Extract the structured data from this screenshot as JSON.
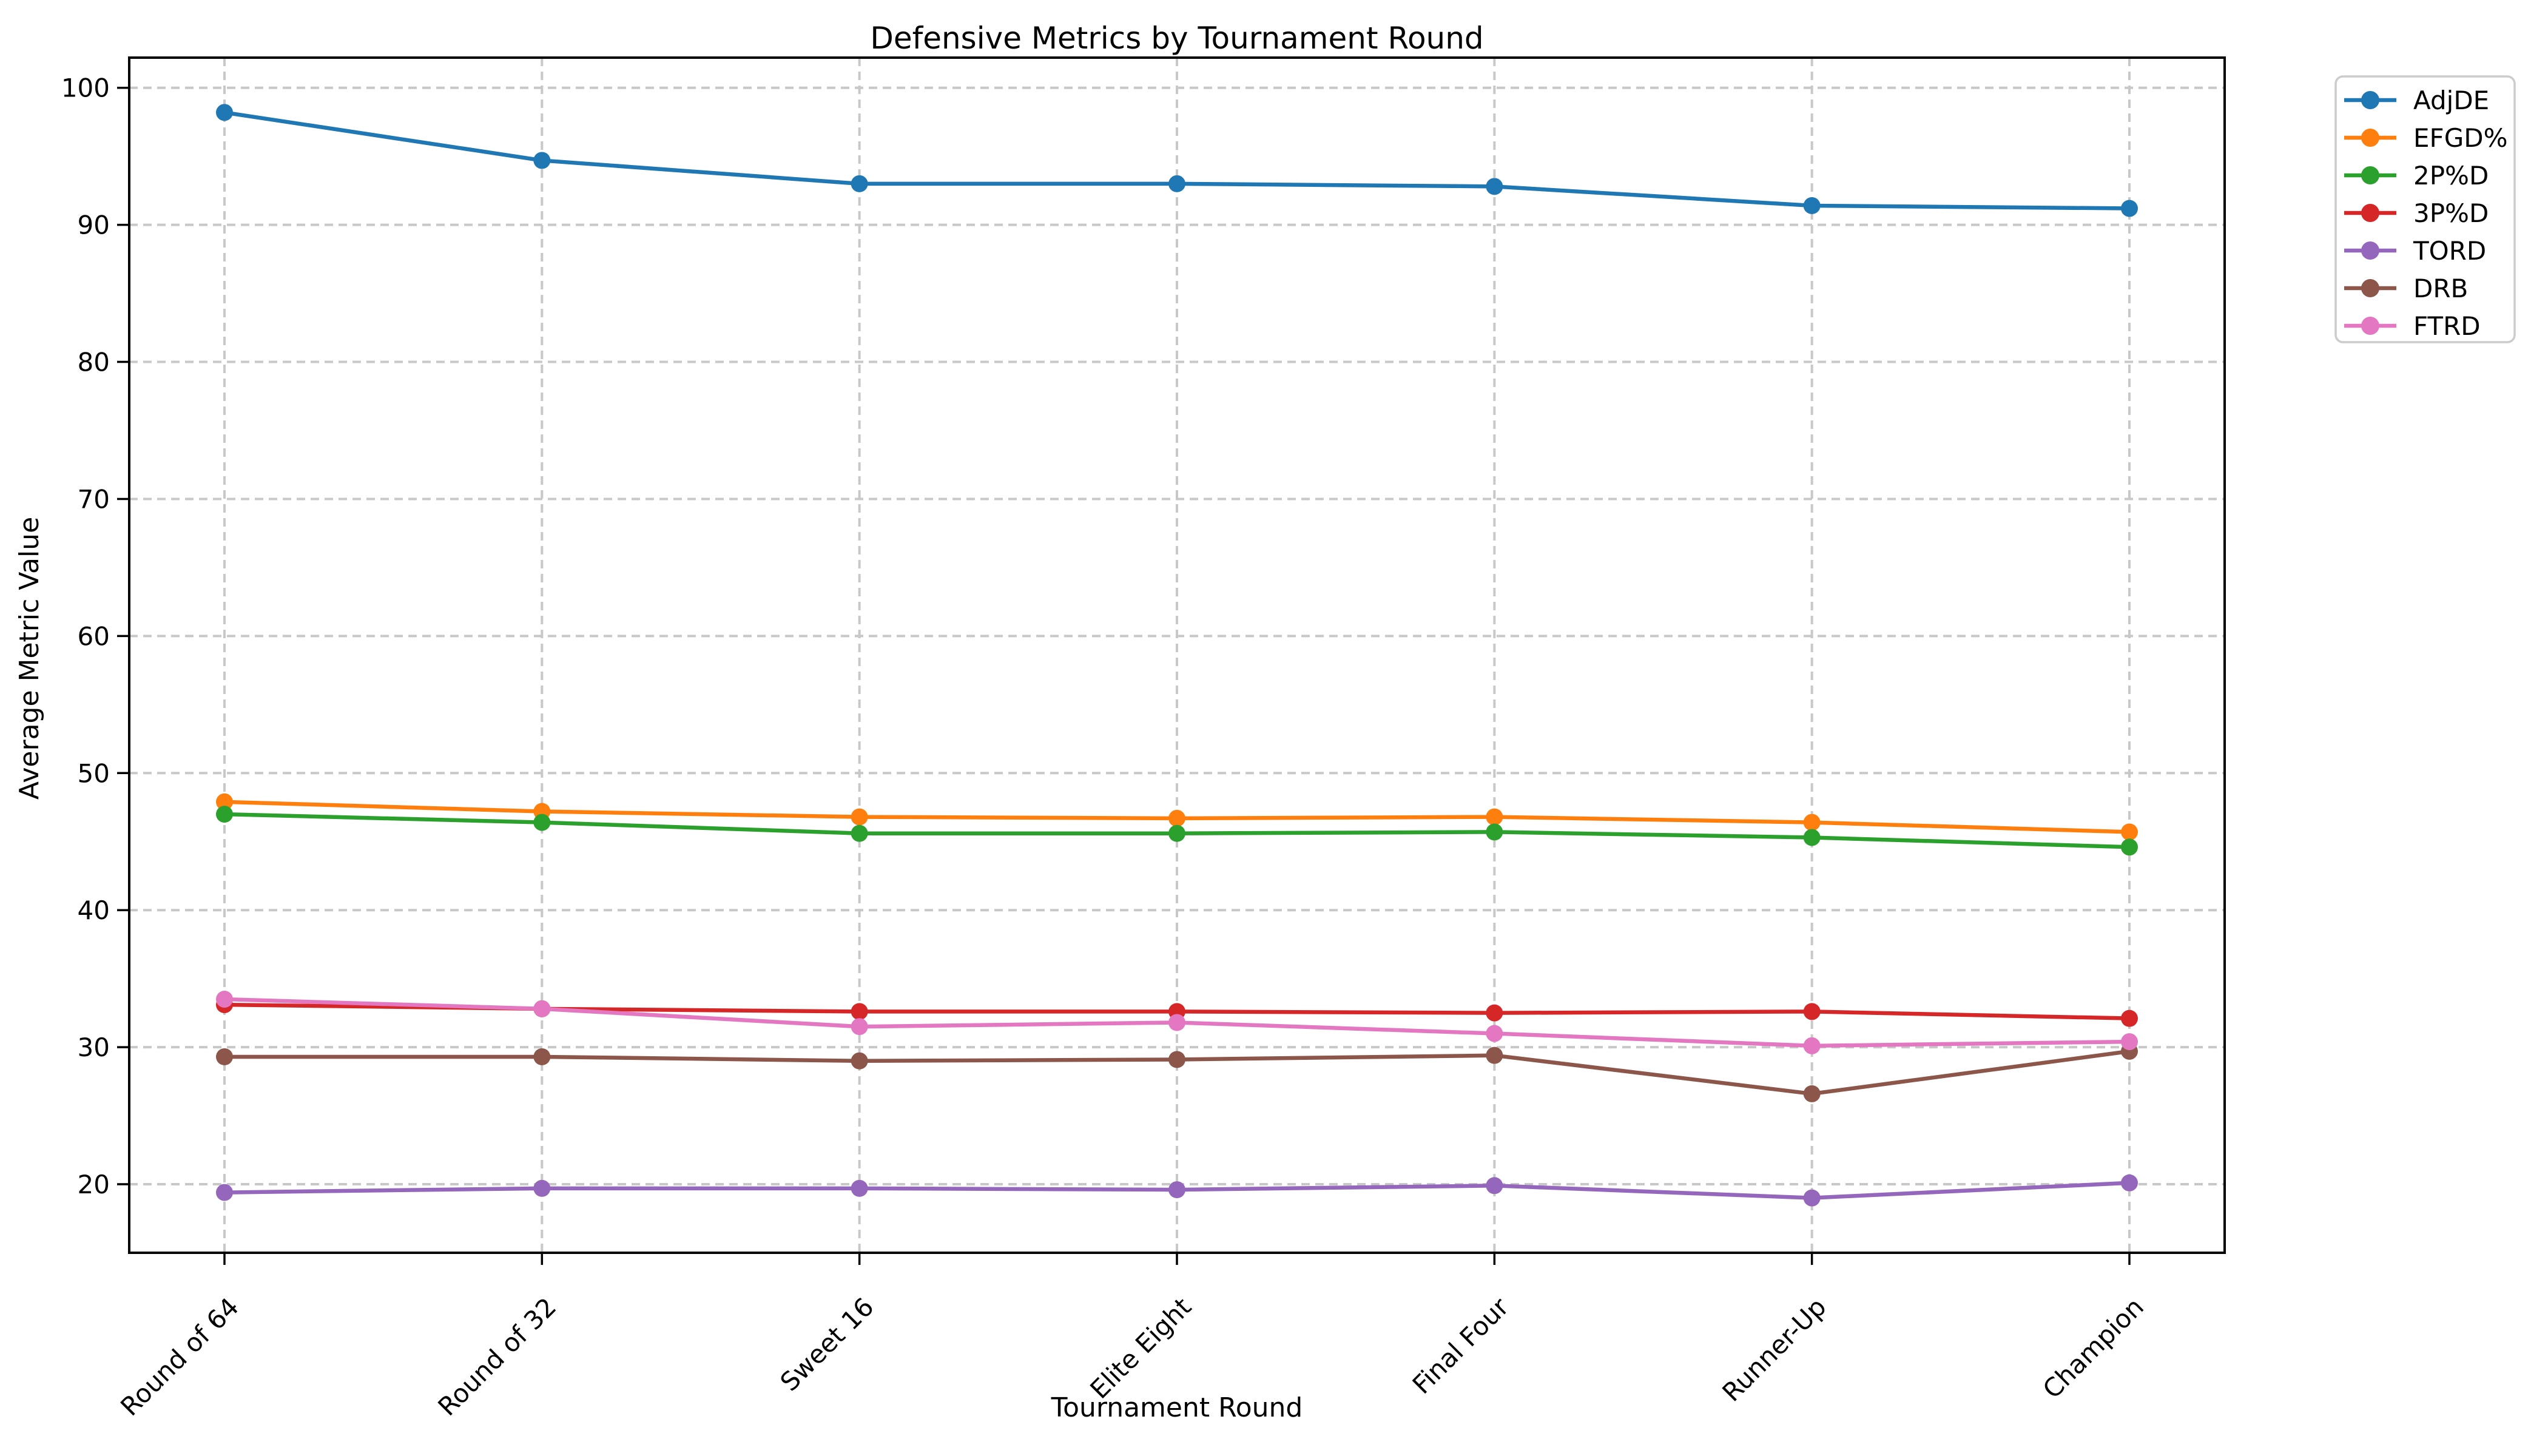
{
  "figure": {
    "background_color": "#ffffff",
    "plot_border_color": "#000000",
    "grid_color": "#c8c8c8",
    "tick_color": "#000000"
  },
  "chart_data": {
    "type": "line",
    "title": "Defensive Metrics by Tournament Round",
    "xlabel": "Tournament Round",
    "ylabel": "Average Metric Value",
    "categories": [
      "Round of 64",
      "Round of 32",
      "Sweet 16",
      "Elite Eight",
      "Final Four",
      "Runner-Up",
      "Champion"
    ],
    "series": [
      {
        "name": "AdjDE",
        "color": "#1f77b4",
        "values": [
          98.2,
          94.7,
          93.0,
          93.0,
          92.8,
          91.4,
          91.2
        ]
      },
      {
        "name": "EFGD%",
        "color": "#ff7f0e",
        "values": [
          47.9,
          47.2,
          46.8,
          46.7,
          46.8,
          46.4,
          45.7
        ]
      },
      {
        "name": "2P%D",
        "color": "#2ca02c",
        "values": [
          47.0,
          46.4,
          45.6,
          45.6,
          45.7,
          45.3,
          44.6
        ]
      },
      {
        "name": "3P%D",
        "color": "#d62728",
        "values": [
          33.1,
          32.8,
          32.6,
          32.6,
          32.5,
          32.6,
          32.1
        ]
      },
      {
        "name": "TORD",
        "color": "#9467bd",
        "values": [
          19.4,
          19.7,
          19.7,
          19.6,
          19.9,
          19.0,
          20.1
        ]
      },
      {
        "name": "DRB",
        "color": "#8c564b",
        "values": [
          29.3,
          29.3,
          29.0,
          29.1,
          29.4,
          26.6,
          29.7
        ]
      },
      {
        "name": "FTRD",
        "color": "#e377c2",
        "values": [
          33.5,
          32.8,
          31.5,
          31.8,
          31.0,
          30.1,
          30.4
        ]
      }
    ],
    "yticks": [
      20,
      30,
      40,
      50,
      60,
      70,
      80,
      90,
      100
    ],
    "ylim": [
      15.0,
      102.2
    ],
    "grid": true,
    "grid_style": "dashed",
    "legend": {
      "position": "outside-upper-right",
      "border_color": "#cccccc",
      "background_color": "#ffffff",
      "entries": [
        "AdjDE",
        "EFGD%",
        "2P%D",
        "3P%D",
        "TORD",
        "DRB",
        "FTRD"
      ]
    }
  }
}
